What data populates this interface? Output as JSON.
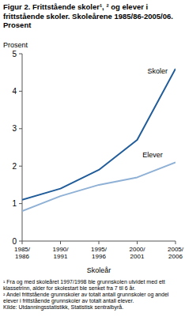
{
  "chart_data": {
    "type": "line",
    "title": "Figur 2. Frittstående skoler¹, ² og elever i frittstående skoler. Skoleårene 1985/86-2005/06. Prosent",
    "y_label": "Prosent",
    "x_label": "Skoleår",
    "categories": [
      "1985/1986",
      "1990/1991",
      "1995/1996",
      "2000/2001",
      "2005/2006"
    ],
    "series": [
      {
        "name": "Skoler",
        "color": "#1f5c99",
        "values": [
          1.1,
          1.4,
          1.9,
          2.7,
          4.6
        ]
      },
      {
        "name": "Elever",
        "color": "#8fb1d6",
        "values": [
          0.8,
          1.2,
          1.5,
          1.7,
          2.1
        ]
      }
    ],
    "ylim": [
      0,
      5
    ],
    "yticks": [
      0,
      1,
      2,
      3,
      4,
      5
    ],
    "grid": false,
    "footnotes": [
      "¹ Fra og med skoleåret 1997/1998 ble grunnskolen utvidet med ett klassetrinn, alder for skolestart ble senket fra 7 til 6 år.",
      "² Andel frittstående grunnskoler av totalt antall grunnskoler og andel elever i frittstående grunnskoler av totalt antall elever.",
      "Kilde: Utdanningsstatistikk, Statistisk sentralbyrå."
    ]
  }
}
